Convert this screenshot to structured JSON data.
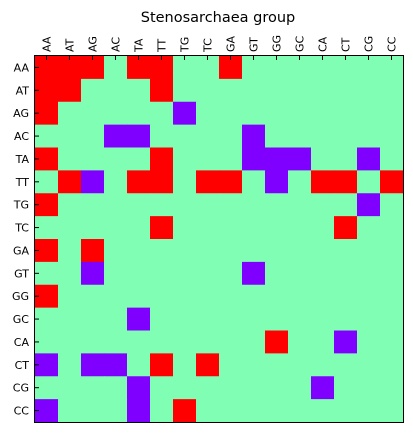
{
  "chart_data": {
    "type": "heatmap",
    "title": "Stenosarchaea group",
    "xlabel": "",
    "ylabel": "",
    "x_categories": [
      "AA",
      "AT",
      "AG",
      "AC",
      "TA",
      "TT",
      "TG",
      "TC",
      "GA",
      "GT",
      "GG",
      "GC",
      "CA",
      "CT",
      "CG",
      "CC"
    ],
    "y_categories": [
      "AA",
      "AT",
      "AG",
      "AC",
      "TA",
      "TT",
      "TG",
      "TC",
      "GA",
      "GT",
      "GG",
      "GC",
      "CA",
      "CT",
      "CG",
      "CC"
    ],
    "x_ticks_position": "top",
    "grid": false,
    "legend": "none",
    "value_range": [
      -1,
      1
    ],
    "colors": {
      "-1": "#8000ff",
      "0": "#80feb3",
      "1": "#ff0000"
    },
    "matrix": [
      [
        1,
        1,
        1,
        0,
        1,
        1,
        0,
        0,
        1,
        0,
        0,
        0,
        0,
        0,
        0,
        0
      ],
      [
        1,
        1,
        0,
        0,
        0,
        1,
        0,
        0,
        0,
        0,
        0,
        0,
        0,
        0,
        0,
        0
      ],
      [
        1,
        0,
        0,
        0,
        0,
        0,
        -1,
        0,
        0,
        0,
        0,
        0,
        0,
        0,
        0,
        0
      ],
      [
        0,
        0,
        0,
        -1,
        -1,
        0,
        0,
        0,
        0,
        -1,
        0,
        0,
        0,
        0,
        0,
        0
      ],
      [
        1,
        0,
        0,
        0,
        0,
        1,
        0,
        0,
        0,
        -1,
        -1,
        -1,
        0,
        0,
        -1,
        0
      ],
      [
        0,
        1,
        -1,
        0,
        1,
        1,
        0,
        1,
        1,
        0,
        -1,
        0,
        1,
        1,
        0,
        1
      ],
      [
        1,
        0,
        0,
        0,
        0,
        0,
        0,
        0,
        0,
        0,
        0,
        0,
        0,
        0,
        -1,
        0
      ],
      [
        0,
        0,
        0,
        0,
        0,
        1,
        0,
        0,
        0,
        0,
        0,
        0,
        0,
        1,
        0,
        0
      ],
      [
        1,
        0,
        1,
        0,
        0,
        0,
        0,
        0,
        0,
        0,
        0,
        0,
        0,
        0,
        0,
        0
      ],
      [
        0,
        0,
        -1,
        0,
        0,
        0,
        0,
        0,
        0,
        -1,
        0,
        0,
        0,
        0,
        0,
        0
      ],
      [
        1,
        0,
        0,
        0,
        0,
        0,
        0,
        0,
        0,
        0,
        0,
        0,
        0,
        0,
        0,
        0
      ],
      [
        0,
        0,
        0,
        0,
        -1,
        0,
        0,
        0,
        0,
        0,
        0,
        0,
        0,
        0,
        0,
        0
      ],
      [
        0,
        0,
        0,
        0,
        0,
        0,
        0,
        0,
        0,
        0,
        1,
        0,
        0,
        -1,
        0,
        0
      ],
      [
        -1,
        0,
        -1,
        -1,
        0,
        1,
        0,
        1,
        0,
        0,
        0,
        0,
        0,
        0,
        0,
        0
      ],
      [
        0,
        0,
        0,
        0,
        -1,
        0,
        0,
        0,
        0,
        0,
        0,
        0,
        -1,
        0,
        0,
        0
      ],
      [
        -1,
        0,
        0,
        0,
        -1,
        0,
        1,
        0,
        0,
        0,
        0,
        0,
        0,
        0,
        0,
        0
      ]
    ]
  }
}
